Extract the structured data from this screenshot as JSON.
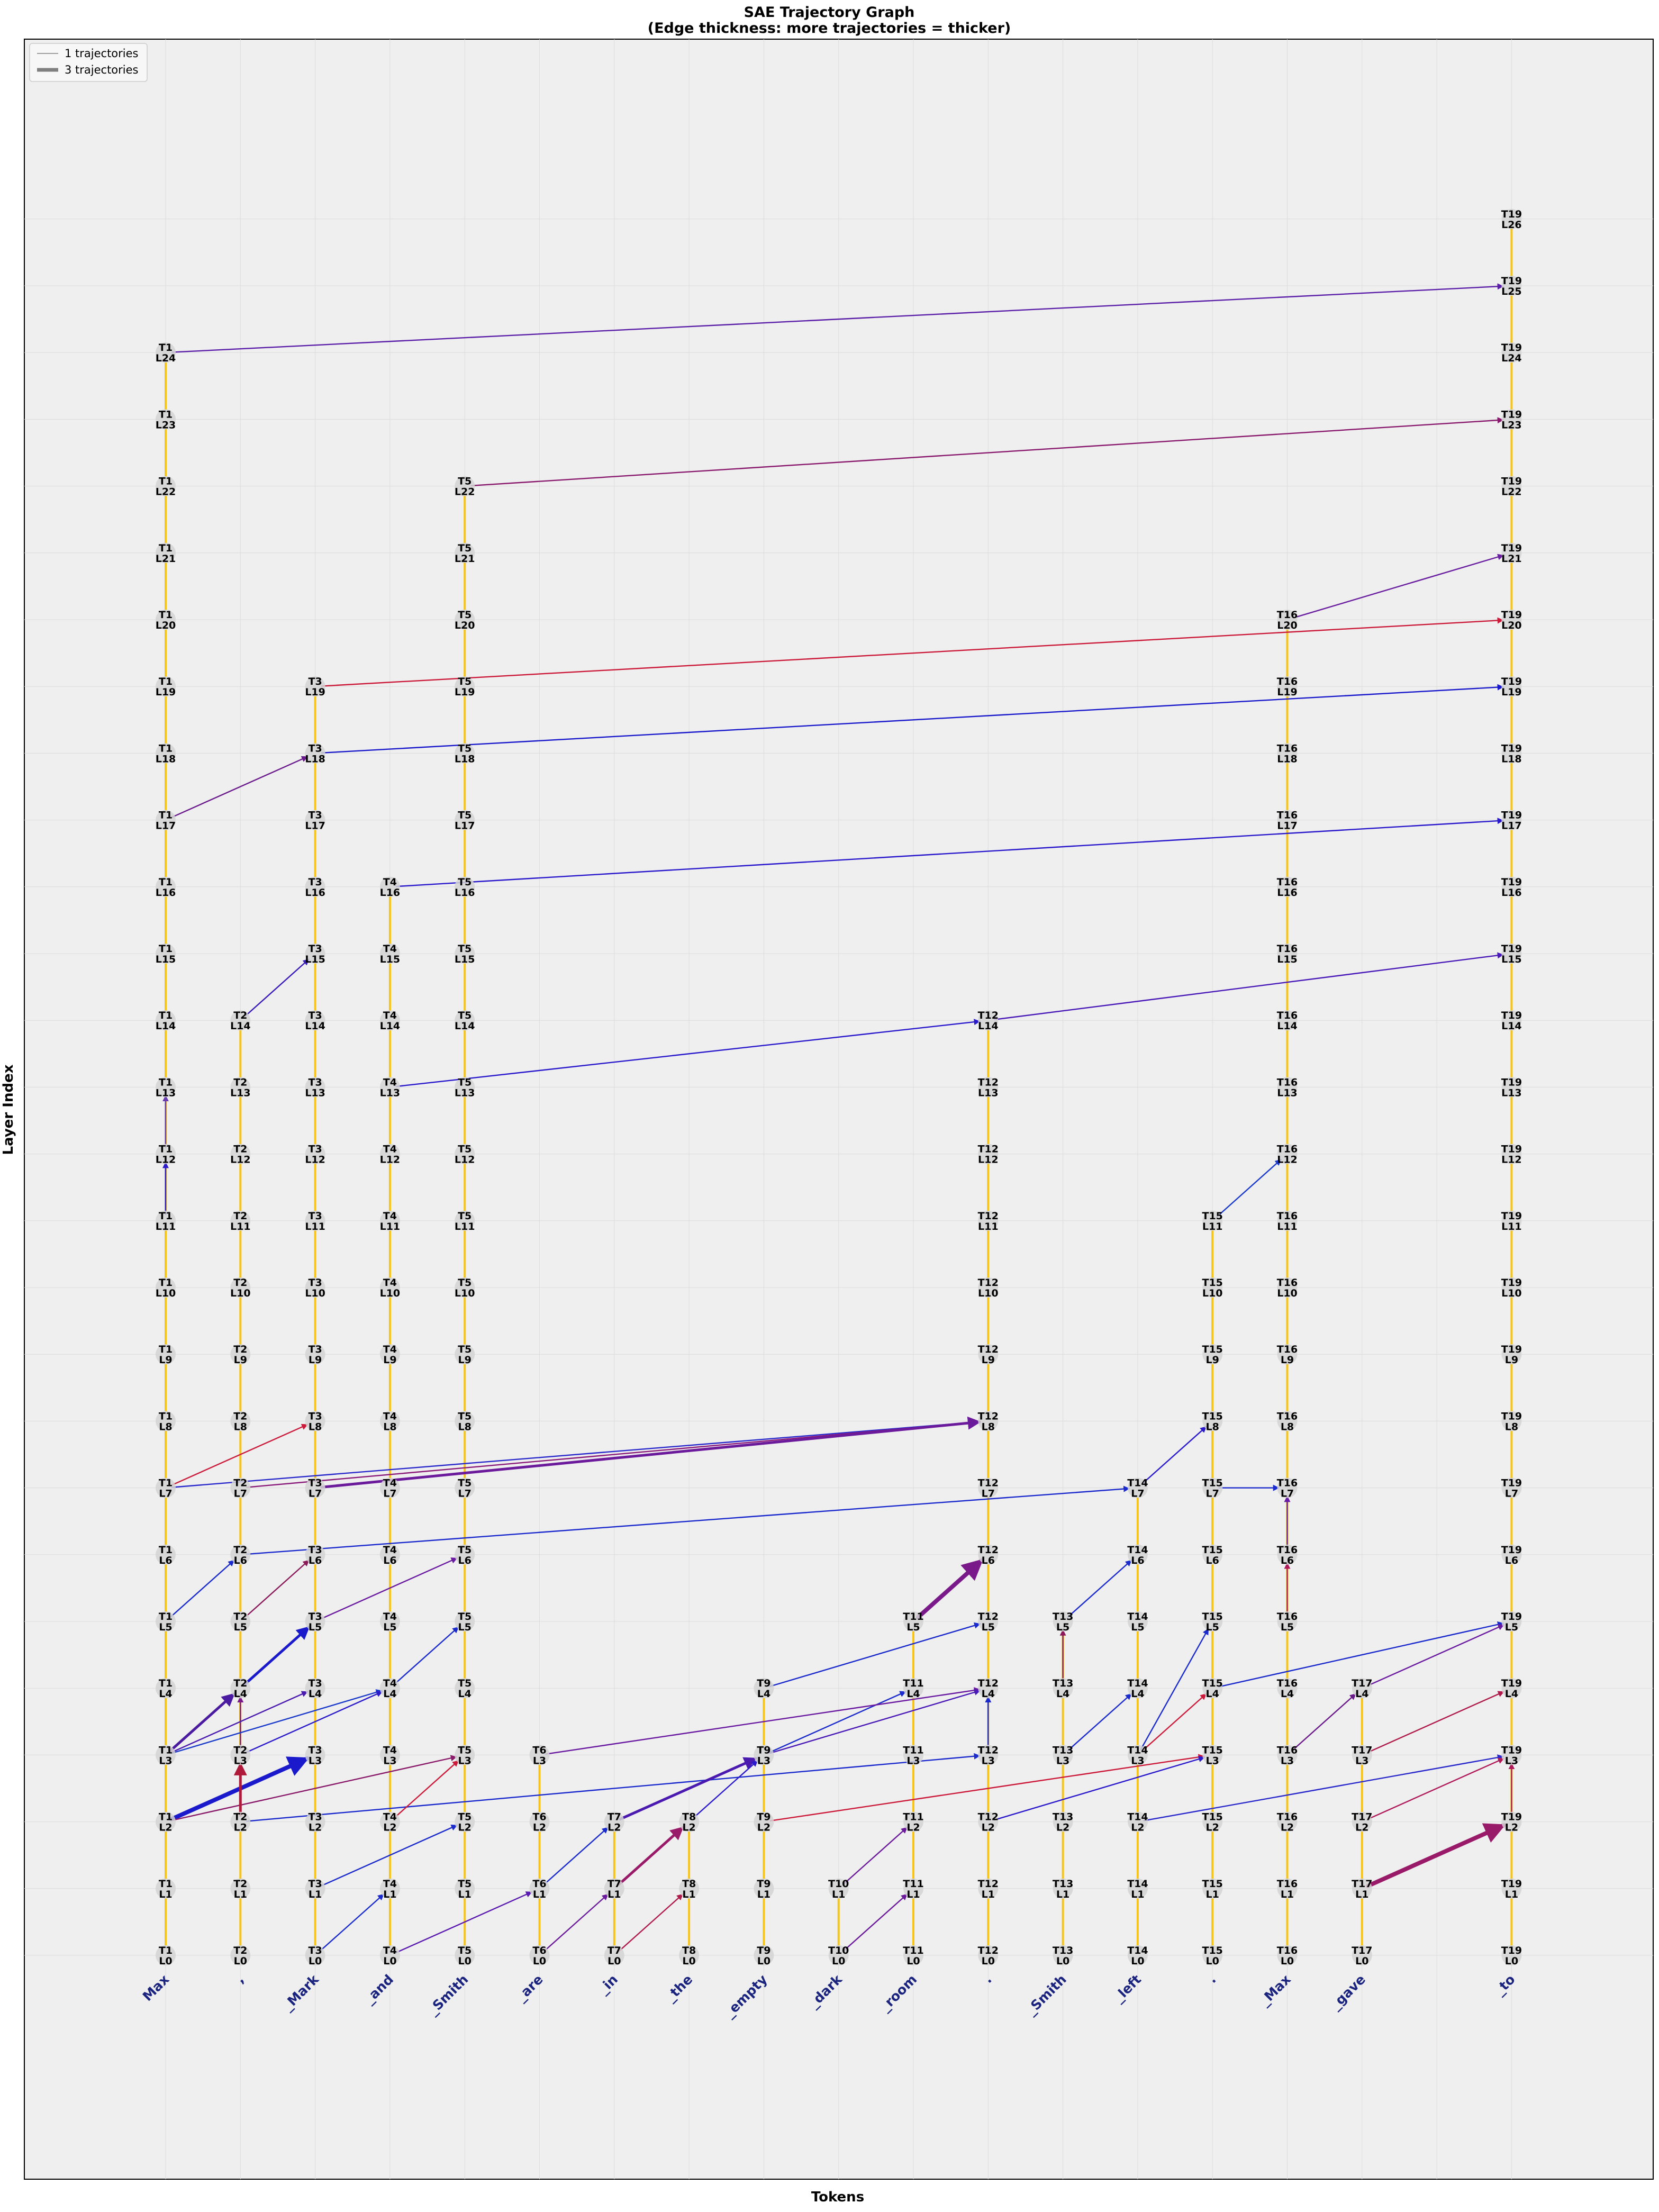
{
  "title": {
    "line1": "SAE Trajectory Graph",
    "line2": "(Edge thickness: more trajectories = thicker)"
  },
  "axes": {
    "xlabel": "Tokens",
    "ylabel": "Layer Index"
  },
  "legend": {
    "placement": "top-left",
    "items": [
      {
        "label": "1 trajectories",
        "weight": 1
      },
      {
        "label": "3 trajectories",
        "weight": 3
      }
    ]
  },
  "colors": {
    "background": "#efefef",
    "vertical_edge": "#f6c517",
    "node_fill": "#d4d4d4",
    "grid": "#dcdcdc",
    "token_text": "#1a237e"
  },
  "tokens": [
    {
      "label": "Max",
      "pos": 1
    },
    {
      "label": ",",
      "pos": 2
    },
    {
      "label": "_Mark",
      "pos": 3
    },
    {
      "label": "_and",
      "pos": 4
    },
    {
      "label": "_Smith",
      "pos": 5
    },
    {
      "label": "_are",
      "pos": 6
    },
    {
      "label": "_in",
      "pos": 7
    },
    {
      "label": "_the",
      "pos": 8
    },
    {
      "label": "_empty",
      "pos": 9
    },
    {
      "label": "_dark",
      "pos": 10
    },
    {
      "label": "_room",
      "pos": 11
    },
    {
      "label": ".",
      "pos": 12
    },
    {
      "label": "_Smith",
      "pos": 13
    },
    {
      "label": "_left",
      "pos": 14
    },
    {
      "label": ".",
      "pos": 15
    },
    {
      "label": "_Max",
      "pos": 16
    },
    {
      "label": "_gave",
      "pos": 17
    },
    {
      "label": "_to",
      "pos": 19
    }
  ],
  "columns": [
    {
      "t": 1,
      "max_layer": 24
    },
    {
      "t": 2,
      "max_layer": 14
    },
    {
      "t": 3,
      "max_layer": 19
    },
    {
      "t": 4,
      "max_layer": 16
    },
    {
      "t": 5,
      "max_layer": 22
    },
    {
      "t": 6,
      "max_layer": 3
    },
    {
      "t": 7,
      "max_layer": 2
    },
    {
      "t": 8,
      "max_layer": 2
    },
    {
      "t": 9,
      "max_layer": 4
    },
    {
      "t": 10,
      "max_layer": 1
    },
    {
      "t": 11,
      "max_layer": 5
    },
    {
      "t": 12,
      "max_layer": 14
    },
    {
      "t": 13,
      "max_layer": 5
    },
    {
      "t": 14,
      "max_layer": 7
    },
    {
      "t": 15,
      "max_layer": 11
    },
    {
      "t": 16,
      "max_layer": 20
    },
    {
      "t": 17,
      "max_layer": 4
    },
    {
      "t": 19,
      "max_layer": 26
    }
  ],
  "chart_data": {
    "type": "graph",
    "x_unit": "token position",
    "y_unit": "layer index",
    "node_label_format": "T{token}\nL{layer}",
    "layer_range": [
      0,
      26
    ],
    "grid": true,
    "edges": [
      {
        "from": [
          1,
          24
        ],
        "to": [
          19,
          25
        ],
        "weight": 1,
        "color": "#5b1fa8"
      },
      {
        "from": [
          5,
          22
        ],
        "to": [
          19,
          23
        ],
        "weight": 1,
        "color": "#8a1a6e"
      },
      {
        "from": [
          16,
          20
        ],
        "to": [
          19,
          21
        ],
        "weight": 1,
        "color": "#6a1fa0"
      },
      {
        "from": [
          3,
          19
        ],
        "to": [
          19,
          20
        ],
        "weight": 1,
        "color": "#cc1a3a"
      },
      {
        "from": [
          3,
          18
        ],
        "to": [
          19,
          19
        ],
        "weight": 1,
        "color": "#1a1acc"
      },
      {
        "from": [
          1,
          17
        ],
        "to": [
          3,
          18
        ],
        "weight": 1,
        "color": "#6a1a8c"
      },
      {
        "from": [
          4,
          16
        ],
        "to": [
          19,
          17
        ],
        "weight": 1,
        "color": "#2a1acc"
      },
      {
        "from": [
          2,
          14
        ],
        "to": [
          3,
          15
        ],
        "weight": 1,
        "color": "#3a1ab8"
      },
      {
        "from": [
          4,
          13
        ],
        "to": [
          12,
          14
        ],
        "weight": 1,
        "color": "#2a1acc"
      },
      {
        "from": [
          12,
          14
        ],
        "to": [
          19,
          15
        ],
        "weight": 1,
        "color": "#4a1ab8"
      },
      {
        "from": [
          1,
          12
        ],
        "to": [
          1,
          13
        ],
        "weight": 1,
        "color": "#6a3ab0"
      },
      {
        "from": [
          1,
          11
        ],
        "to": [
          1,
          12
        ],
        "weight": 1,
        "color": "#2a1acc"
      },
      {
        "from": [
          15,
          11
        ],
        "to": [
          16,
          12
        ],
        "weight": 1,
        "color": "#1a3acc"
      },
      {
        "from": [
          1,
          7
        ],
        "to": [
          3,
          8
        ],
        "weight": 1,
        "color": "#cc1a3a"
      },
      {
        "from": [
          1,
          7
        ],
        "to": [
          12,
          8
        ],
        "weight": 1,
        "color": "#2a2acc"
      },
      {
        "from": [
          2,
          7
        ],
        "to": [
          12,
          8
        ],
        "weight": 1,
        "color": "#8a1a7a"
      },
      {
        "from": [
          3,
          7
        ],
        "to": [
          12,
          8
        ],
        "weight": 2,
        "color": "#6a1a9a"
      },
      {
        "from": [
          14,
          7
        ],
        "to": [
          15,
          8
        ],
        "weight": 1,
        "color": "#2a1acc"
      },
      {
        "from": [
          2,
          6
        ],
        "to": [
          14,
          7
        ],
        "weight": 1,
        "color": "#1a2acc"
      },
      {
        "from": [
          15,
          7
        ],
        "to": [
          16,
          7
        ],
        "weight": 1,
        "color": "#1a2acc"
      },
      {
        "from": [
          16,
          6
        ],
        "to": [
          16,
          7
        ],
        "weight": 1,
        "color": "#6a1aa8"
      },
      {
        "from": [
          1,
          5
        ],
        "to": [
          2,
          6
        ],
        "weight": 1,
        "color": "#1a2acc"
      },
      {
        "from": [
          2,
          5
        ],
        "to": [
          3,
          6
        ],
        "weight": 1,
        "color": "#8a1a5a"
      },
      {
        "from": [
          3,
          5
        ],
        "to": [
          5,
          6
        ],
        "weight": 1,
        "color": "#6a1aa0"
      },
      {
        "from": [
          11,
          5
        ],
        "to": [
          12,
          6
        ],
        "weight": 3,
        "color": "#7a1a8a"
      },
      {
        "from": [
          13,
          5
        ],
        "to": [
          14,
          6
        ],
        "weight": 1,
        "color": "#1a2acc"
      },
      {
        "from": [
          16,
          5
        ],
        "to": [
          16,
          6
        ],
        "weight": 1,
        "color": "#b01a5a"
      },
      {
        "from": [
          1,
          3
        ],
        "to": [
          2,
          4
        ],
        "weight": 2,
        "color": "#4a1aa0"
      },
      {
        "from": [
          2,
          4
        ],
        "to": [
          3,
          5
        ],
        "weight": 2,
        "color": "#1a1acc"
      },
      {
        "from": [
          2,
          3
        ],
        "to": [
          2,
          4
        ],
        "weight": 1,
        "color": "#7a1a8a"
      },
      {
        "from": [
          1,
          3
        ],
        "to": [
          3,
          4
        ],
        "weight": 1,
        "color": "#4a1ab0"
      },
      {
        "from": [
          1,
          3
        ],
        "to": [
          4,
          4
        ],
        "weight": 1,
        "color": "#1a3acc"
      },
      {
        "from": [
          4,
          4
        ],
        "to": [
          5,
          5
        ],
        "weight": 1,
        "color": "#1a2acc"
      },
      {
        "from": [
          2,
          3
        ],
        "to": [
          4,
          4
        ],
        "weight": 1,
        "color": "#2a1acc"
      },
      {
        "from": [
          9,
          4
        ],
        "to": [
          12,
          5
        ],
        "weight": 1,
        "color": "#1a2acc"
      },
      {
        "from": [
          9,
          3
        ],
        "to": [
          11,
          4
        ],
        "weight": 1,
        "color": "#1a2acc"
      },
      {
        "from": [
          6,
          3
        ],
        "to": [
          12,
          4
        ],
        "weight": 1,
        "color": "#6a1aa0"
      },
      {
        "from": [
          9,
          3
        ],
        "to": [
          12,
          4
        ],
        "weight": 1,
        "color": "#4a1ab8"
      },
      {
        "from": [
          12,
          3
        ],
        "to": [
          12,
          4
        ],
        "weight": 1,
        "color": "#1a2acc"
      },
      {
        "from": [
          13,
          4
        ],
        "to": [
          13,
          5
        ],
        "weight": 1,
        "color": "#8a1a5a"
      },
      {
        "from": [
          13,
          3
        ],
        "to": [
          14,
          4
        ],
        "weight": 1,
        "color": "#1a2acc"
      },
      {
        "from": [
          15,
          4
        ],
        "to": [
          19,
          5
        ],
        "weight": 1,
        "color": "#1a2acc"
      },
      {
        "from": [
          14,
          3
        ],
        "to": [
          15,
          5
        ],
        "weight": 1,
        "color": "#1a2acc"
      },
      {
        "from": [
          14,
          3
        ],
        "to": [
          15,
          4
        ],
        "weight": 1,
        "color": "#cc1a3a"
      },
      {
        "from": [
          16,
          3
        ],
        "to": [
          17,
          4
        ],
        "weight": 1,
        "color": "#6a1a8a"
      },
      {
        "from": [
          17,
          4
        ],
        "to": [
          19,
          5
        ],
        "weight": 1,
        "color": "#6a1aa0"
      },
      {
        "from": [
          17,
          3
        ],
        "to": [
          19,
          4
        ],
        "weight": 1,
        "color": "#b01a4a"
      },
      {
        "from": [
          1,
          2
        ],
        "to": [
          3,
          3
        ],
        "weight": 3,
        "color": "#1a1acc"
      },
      {
        "from": [
          1,
          2
        ],
        "to": [
          5,
          3
        ],
        "weight": 1,
        "color": "#8a1a6a"
      },
      {
        "from": [
          2,
          2
        ],
        "to": [
          2,
          3
        ],
        "weight": 2,
        "color": "#b01a3a"
      },
      {
        "from": [
          2,
          2
        ],
        "to": [
          12,
          3
        ],
        "weight": 1,
        "color": "#1a2acc"
      },
      {
        "from": [
          4,
          2
        ],
        "to": [
          5,
          3
        ],
        "weight": 1,
        "color": "#cc1a3a"
      },
      {
        "from": [
          7,
          2
        ],
        "to": [
          9,
          3
        ],
        "weight": 2,
        "color": "#4a1ab0"
      },
      {
        "from": [
          8,
          2
        ],
        "to": [
          9,
          3
        ],
        "weight": 1,
        "color": "#2a1acc"
      },
      {
        "from": [
          9,
          2
        ],
        "to": [
          15,
          3
        ],
        "weight": 1,
        "color": "#cc1a3a"
      },
      {
        "from": [
          12,
          2
        ],
        "to": [
          15,
          3
        ],
        "weight": 1,
        "color": "#2a1acc"
      },
      {
        "from": [
          14,
          2
        ],
        "to": [
          19,
          3
        ],
        "weight": 1,
        "color": "#2a2acc"
      },
      {
        "from": [
          17,
          2
        ],
        "to": [
          19,
          3
        ],
        "weight": 1,
        "color": "#b01a5a"
      },
      {
        "from": [
          19,
          2
        ],
        "to": [
          19,
          3
        ],
        "weight": 1,
        "color": "#b01a5a"
      },
      {
        "from": [
          3,
          1
        ],
        "to": [
          5,
          2
        ],
        "weight": 1,
        "color": "#1a2acc"
      },
      {
        "from": [
          6,
          1
        ],
        "to": [
          7,
          2
        ],
        "weight": 1,
        "color": "#1a2acc"
      },
      {
        "from": [
          7,
          1
        ],
        "to": [
          8,
          2
        ],
        "weight": 2,
        "color": "#9a1a6a"
      },
      {
        "from": [
          10,
          1
        ],
        "to": [
          11,
          2
        ],
        "weight": 1,
        "color": "#6a1a9a"
      },
      {
        "from": [
          17,
          1
        ],
        "to": [
          19,
          2
        ],
        "weight": 3,
        "color": "#9a1a6a"
      },
      {
        "from": [
          3,
          0
        ],
        "to": [
          4,
          1
        ],
        "weight": 1,
        "color": "#1a2acc"
      },
      {
        "from": [
          4,
          0
        ],
        "to": [
          6,
          1
        ],
        "weight": 1,
        "color": "#5a1ab0"
      },
      {
        "from": [
          6,
          0
        ],
        "to": [
          7,
          1
        ],
        "weight": 1,
        "color": "#6a1a9a"
      },
      {
        "from": [
          7,
          0
        ],
        "to": [
          8,
          1
        ],
        "weight": 1,
        "color": "#b01a4a"
      },
      {
        "from": [
          10,
          0
        ],
        "to": [
          11,
          1
        ],
        "weight": 1,
        "color": "#6a1a9a"
      }
    ]
  }
}
